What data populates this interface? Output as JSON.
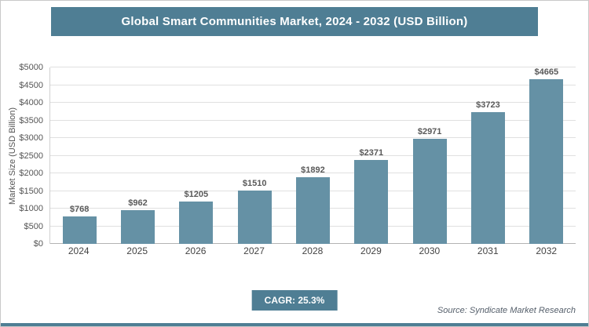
{
  "title": "Global Smart Communities Market, 2024 - 2032 (USD Billion)",
  "chart_data": {
    "type": "bar",
    "categories": [
      "2024",
      "2025",
      "2026",
      "2027",
      "2028",
      "2029",
      "2030",
      "2031",
      "2032"
    ],
    "values": [
      768,
      962,
      1205,
      1510,
      1892,
      2371,
      2971,
      3723,
      4665
    ],
    "labels": [
      "$768",
      "$962",
      "$1205",
      "$1510",
      "$1892",
      "$2371",
      "$2971",
      "$3723",
      "$4665"
    ],
    "title": "Global Smart Communities Market, 2024 - 2032 (USD Billion)",
    "xlabel": "",
    "ylabel": "Market Size (USD Billion)",
    "ylim": [
      0,
      5000
    ],
    "ytick_step": 500,
    "ytick_labels": [
      "$0",
      "$500",
      "$1000",
      "$1500",
      "$2000",
      "$2500",
      "$3000",
      "$3500",
      "$4000",
      "$4500",
      "$5000"
    ],
    "grid": true,
    "legend": "none",
    "bar_color": "#6591a5"
  },
  "footer": {
    "cagr_label": "CAGR: 25.3%",
    "source": "Source: Syndicate Market Research"
  },
  "colors": {
    "header_bg": "#4f7e94",
    "bar": "#6591a5",
    "badge_bg": "#4f7e94",
    "gridline": "#e0e0e0",
    "bottom_line": "#4f7e94",
    "title_text": "#ffffff",
    "axis_text": "#555555"
  }
}
